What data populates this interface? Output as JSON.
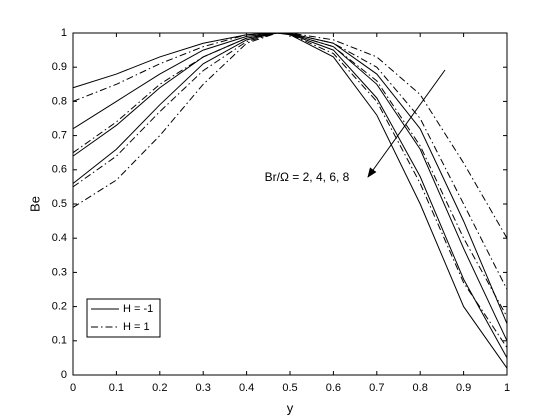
{
  "chart_data": {
    "type": "line",
    "xlabel": "y",
    "ylabel": "Be",
    "annotation": "Br/Ω = 2, 4, 6, 8",
    "x": [
      0,
      0.1,
      0.2,
      0.3,
      0.4,
      0.47,
      0.5,
      0.6,
      0.7,
      0.8,
      0.9,
      1
    ],
    "series": [
      {
        "name": "H = -1",
        "color": "#000000",
        "dash": "solid",
        "values": [
          [
            0.56,
            0.66,
            0.79,
            0.91,
            0.98,
            1,
            0.999,
            0.97,
            0.88,
            0.72,
            0.45,
            0.15
          ],
          [
            0.64,
            0.73,
            0.84,
            0.93,
            0.985,
            1,
            0.998,
            0.96,
            0.85,
            0.66,
            0.37,
            0.1
          ],
          [
            0.72,
            0.8,
            0.88,
            0.95,
            0.99,
            1,
            0.997,
            0.95,
            0.81,
            0.58,
            0.28,
            0.05
          ],
          [
            0.84,
            0.88,
            0.93,
            0.97,
            0.995,
            1,
            0.995,
            0.93,
            0.76,
            0.5,
            0.2,
            0.02
          ]
        ]
      },
      {
        "name": "H = 1",
        "color": "#000000",
        "dash": "dashdot",
        "values": [
          [
            0.49,
            0.57,
            0.7,
            0.85,
            0.97,
            1,
            1,
            0.98,
            0.93,
            0.82,
            0.62,
            0.4
          ],
          [
            0.55,
            0.64,
            0.77,
            0.89,
            0.975,
            1,
            0.999,
            0.97,
            0.9,
            0.75,
            0.5,
            0.25
          ],
          [
            0.65,
            0.74,
            0.85,
            0.93,
            0.985,
            1,
            0.998,
            0.96,
            0.86,
            0.67,
            0.4,
            0.17
          ],
          [
            0.8,
            0.85,
            0.91,
            0.96,
            0.995,
            1,
            0.996,
            0.94,
            0.8,
            0.56,
            0.27,
            0.08
          ]
        ]
      }
    ],
    "xlim": [
      0,
      1
    ],
    "ylim": [
      0,
      1
    ],
    "xticks": [
      0,
      0.1,
      0.2,
      0.3,
      0.4,
      0.5,
      0.6,
      0.7,
      0.8,
      0.9,
      1
    ],
    "yticks": [
      0,
      0.1,
      0.2,
      0.3,
      0.4,
      0.5,
      0.6,
      0.7,
      0.8,
      0.9,
      1
    ],
    "grid": false,
    "legend": "lower left"
  }
}
